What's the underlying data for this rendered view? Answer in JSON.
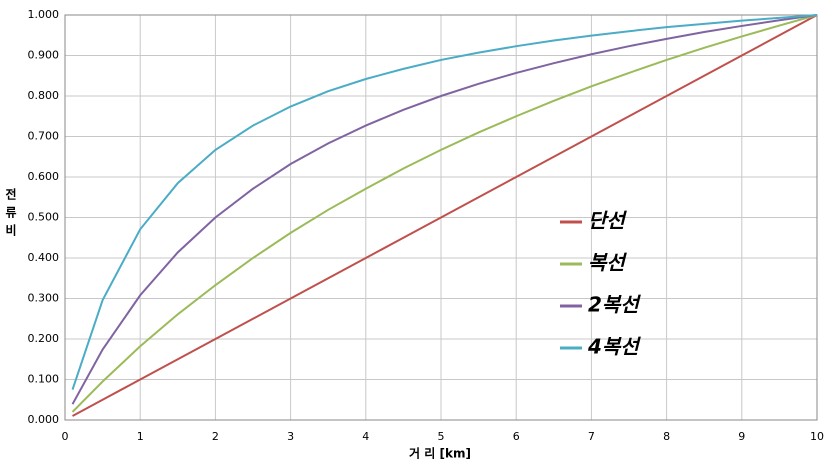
{
  "chart_data": {
    "type": "line",
    "x_label": "거 리 [km]",
    "y_label": "전류비",
    "x": [
      0.1,
      0.5,
      1,
      1.5,
      2,
      2.5,
      3,
      3.5,
      4,
      4.5,
      5,
      5.5,
      6,
      6.5,
      7,
      7.5,
      8,
      8.5,
      9,
      9.5,
      10
    ],
    "series": [
      {
        "name": "단선",
        "color": "#c0504d",
        "values": [
          0.01,
          0.05,
          0.1,
          0.15,
          0.2,
          0.25,
          0.3,
          0.35,
          0.4,
          0.45,
          0.5,
          0.55,
          0.6,
          0.65,
          0.7,
          0.75,
          0.8,
          0.85,
          0.9,
          0.95,
          1.0
        ]
      },
      {
        "name": "복선",
        "color": "#9bbb59",
        "values": [
          0.02,
          0.095,
          0.182,
          0.261,
          0.333,
          0.4,
          0.462,
          0.519,
          0.571,
          0.621,
          0.667,
          0.71,
          0.75,
          0.788,
          0.824,
          0.857,
          0.889,
          0.919,
          0.947,
          0.974,
          1.0
        ]
      },
      {
        "name": "2복선",
        "color": "#8064a2",
        "values": [
          0.039,
          0.174,
          0.308,
          0.414,
          0.5,
          0.571,
          0.632,
          0.683,
          0.727,
          0.766,
          0.8,
          0.83,
          0.857,
          0.881,
          0.903,
          0.923,
          0.941,
          0.958,
          0.973,
          0.987,
          1.0
        ]
      },
      {
        "name": "4복선",
        "color": "#4bacc6",
        "values": [
          0.075,
          0.296,
          0.471,
          0.585,
          0.667,
          0.727,
          0.774,
          0.812,
          0.842,
          0.867,
          0.889,
          0.907,
          0.923,
          0.937,
          0.949,
          0.96,
          0.97,
          0.978,
          0.986,
          0.993,
          1.0
        ]
      }
    ],
    "xlim": [
      0,
      10
    ],
    "xticks": [
      0,
      1,
      2,
      3,
      4,
      5,
      6,
      7,
      8,
      9,
      10
    ],
    "ylim": [
      0,
      1
    ],
    "yticks": [
      {
        "value": 0,
        "label": "0.000"
      },
      {
        "value": 0.1,
        "label": "0.100"
      },
      {
        "value": 0.2,
        "label": "0.200"
      },
      {
        "value": 0.3,
        "label": "0.300"
      },
      {
        "value": 0.4,
        "label": "0.400"
      },
      {
        "value": 0.5,
        "label": "0.500"
      },
      {
        "value": 0.6,
        "label": "0.600"
      },
      {
        "value": 0.7,
        "label": "0.700"
      },
      {
        "value": 0.8,
        "label": "0.800"
      },
      {
        "value": 0.9,
        "label": "0.900"
      },
      {
        "value": 1,
        "label": "1.000"
      }
    ],
    "grid": true,
    "legend": "right"
  }
}
